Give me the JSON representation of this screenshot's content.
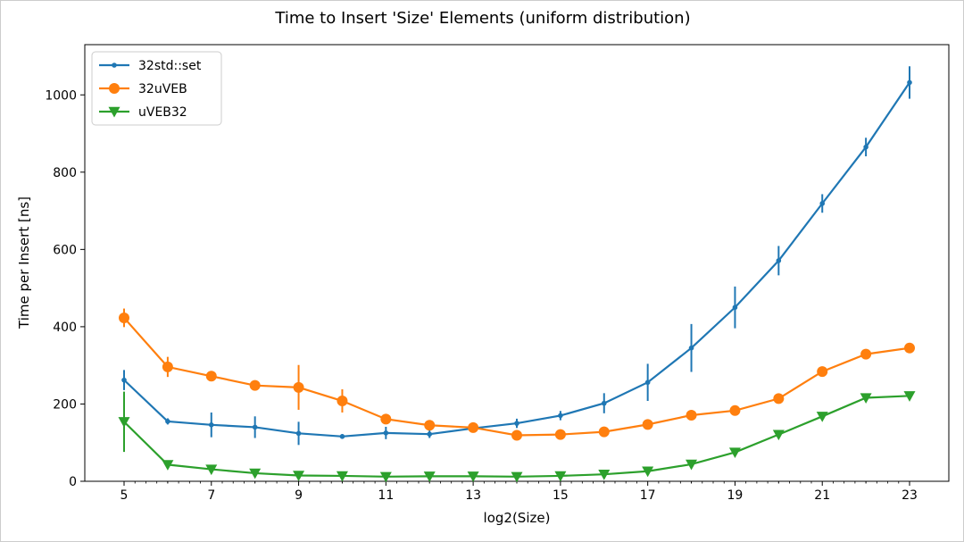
{
  "chart_data": {
    "type": "line",
    "title": "Time to Insert 'Size' Elements (uniform distribution)",
    "xlabel": "log2(Size)",
    "ylabel": "Time per Insert [ns]",
    "xlim": [
      4.1,
      23.9
    ],
    "ylim": [
      0,
      1130
    ],
    "xticks": [
      5,
      7,
      9,
      11,
      13,
      15,
      17,
      19,
      21,
      23
    ],
    "yticks": [
      0,
      200,
      400,
      600,
      800,
      1000
    ],
    "grid": false,
    "legend_position": "top-left",
    "x": [
      5,
      6,
      7,
      8,
      9,
      10,
      11,
      12,
      13,
      14,
      15,
      16,
      17,
      18,
      19,
      20,
      21,
      22,
      23
    ],
    "series": [
      {
        "name": "32std::set",
        "color": "#1f77b4",
        "marker": "small-dot",
        "values": [
          262,
          155,
          146,
          140,
          124,
          116,
          125,
          122,
          137,
          150,
          170,
          202,
          256,
          345,
          450,
          571,
          719,
          865,
          1032
        ],
        "errors": [
          26,
          8,
          32,
          28,
          30,
          6,
          16,
          10,
          8,
          12,
          12,
          26,
          48,
          62,
          54,
          38,
          24,
          24,
          42
        ]
      },
      {
        "name": "32uVEB",
        "color": "#ff7f0e",
        "marker": "circle",
        "values": [
          423,
          296,
          272,
          248,
          243,
          208,
          161,
          145,
          139,
          119,
          121,
          128,
          147,
          171,
          183,
          214,
          284,
          329,
          345
        ],
        "errors": [
          24,
          26,
          6,
          6,
          58,
          30,
          6,
          4,
          4,
          4,
          4,
          4,
          4,
          4,
          4,
          4,
          4,
          4,
          4
        ]
      },
      {
        "name": "uVEB32",
        "color": "#2ca02c",
        "marker": "triangle-down",
        "values": [
          154,
          43,
          31,
          21,
          15,
          14,
          12,
          13,
          13,
          12,
          14,
          18,
          26,
          44,
          75,
          121,
          168,
          216,
          221
        ],
        "errors": [
          78,
          6,
          4,
          3,
          3,
          3,
          3,
          3,
          3,
          3,
          3,
          3,
          3,
          3,
          3,
          3,
          4,
          4,
          4
        ]
      }
    ]
  }
}
